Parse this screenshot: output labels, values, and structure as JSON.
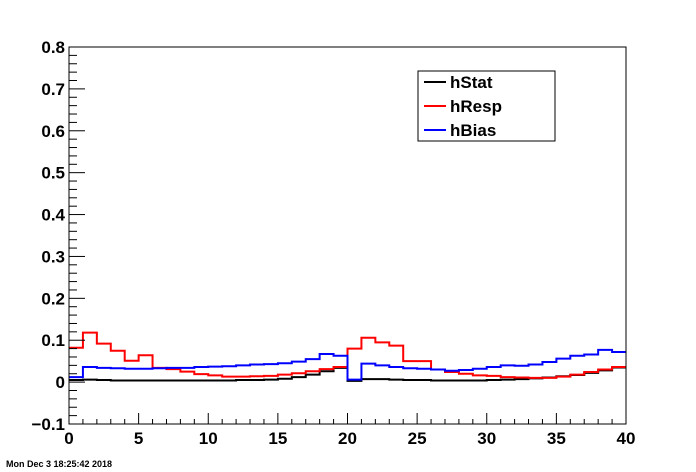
{
  "chart_data": {
    "type": "line",
    "title": "",
    "xlabel": "",
    "ylabel": "",
    "xlim": [
      0,
      40
    ],
    "ylim": [
      -0.1,
      0.8
    ],
    "x_ticks": [
      "0",
      "5",
      "10",
      "15",
      "20",
      "25",
      "30",
      "35",
      "40"
    ],
    "y_ticks": [
      "−0.1",
      "0",
      "0.1",
      "0.2",
      "0.3",
      "0.4",
      "0.5",
      "0.6",
      "0.7",
      "0.8"
    ],
    "grid": false,
    "legend_position": "top-right",
    "bin_edges": [
      0,
      1,
      2,
      3,
      4,
      5,
      6,
      7,
      8,
      9,
      10,
      11,
      12,
      13,
      14,
      15,
      16,
      17,
      18,
      19,
      20,
      21,
      22,
      23,
      24,
      25,
      26,
      27,
      28,
      29,
      30,
      31,
      32,
      33,
      34,
      35,
      36,
      37,
      38,
      39,
      40
    ],
    "series": [
      {
        "name": "hStat",
        "color": "#000000",
        "values": [
          0.005,
          0.006,
          0.005,
          0.004,
          0.004,
          0.004,
          0.004,
          0.004,
          0.004,
          0.004,
          0.004,
          0.004,
          0.005,
          0.005,
          0.006,
          0.008,
          0.012,
          0.018,
          0.026,
          0.034,
          0.003,
          0.007,
          0.007,
          0.006,
          0.005,
          0.005,
          0.004,
          0.004,
          0.004,
          0.004,
          0.005,
          0.006,
          0.007,
          0.009,
          0.011,
          0.014,
          0.017,
          0.022,
          0.028,
          0.035
        ]
      },
      {
        "name": "hResp",
        "color": "#ff0000",
        "values": [
          0.082,
          0.118,
          0.092,
          0.075,
          0.051,
          0.064,
          0.034,
          0.031,
          0.025,
          0.019,
          0.016,
          0.013,
          0.013,
          0.014,
          0.015,
          0.018,
          0.021,
          0.026,
          0.031,
          0.036,
          0.08,
          0.106,
          0.095,
          0.087,
          0.05,
          0.05,
          0.03,
          0.024,
          0.02,
          0.016,
          0.015,
          0.012,
          0.011,
          0.01,
          0.01,
          0.013,
          0.018,
          0.024,
          0.03,
          0.036
        ]
      },
      {
        "name": "hBias",
        "color": "#0000ff",
        "values": [
          0.012,
          0.036,
          0.034,
          0.033,
          0.032,
          0.032,
          0.033,
          0.034,
          0.034,
          0.036,
          0.037,
          0.038,
          0.04,
          0.042,
          0.043,
          0.045,
          0.049,
          0.055,
          0.067,
          0.063,
          0.006,
          0.044,
          0.04,
          0.036,
          0.033,
          0.032,
          0.03,
          0.027,
          0.029,
          0.032,
          0.036,
          0.04,
          0.039,
          0.042,
          0.048,
          0.056,
          0.063,
          0.066,
          0.077,
          0.072
        ]
      }
    ]
  },
  "footer": {
    "timestamp": "Mon Dec  3 18:25:42 2018"
  }
}
